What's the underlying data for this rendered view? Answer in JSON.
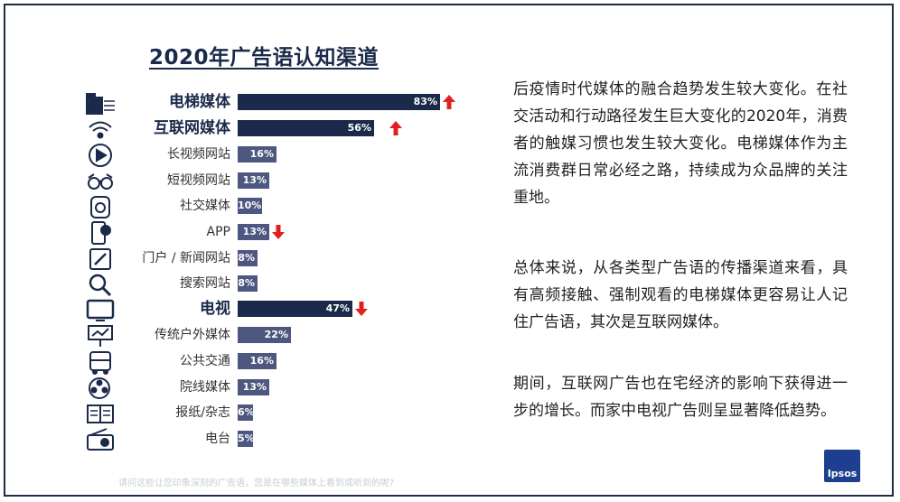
{
  "title": "2020年广告语认知渠道",
  "chart_data": {
    "type": "bar",
    "orientation": "horizontal",
    "title": "2020年广告语认知渠道",
    "xlim": [
      0,
      100
    ],
    "categories": [
      "电梯媒体",
      "互联网媒体",
      "长视频网站",
      "短视频网站",
      "社交媒体",
      "APP",
      "门户 / 新闻网站",
      "搜索网站",
      "电视",
      "传统户外媒体",
      "公共交通",
      "院线媒体",
      "报纸/杂志",
      "电台"
    ],
    "values": [
      83,
      56,
      16,
      13,
      10,
      13,
      8,
      8,
      47,
      22,
      16,
      13,
      6,
      5
    ],
    "value_labels": [
      "83%",
      "56%",
      "16%",
      "13%",
      "10%",
      "13%",
      "8%",
      "8%",
      "47%",
      "22%",
      "16%",
      "13%",
      "6%",
      "5%"
    ],
    "emphasis": [
      true,
      true,
      false,
      false,
      false,
      false,
      false,
      false,
      true,
      false,
      false,
      false,
      false,
      false
    ],
    "trend": [
      "up",
      "up",
      "",
      "",
      "",
      "down",
      "",
      "",
      "down",
      "",
      "",
      "",
      "",
      ""
    ],
    "icons": [
      "building-icon",
      "wifi-icon",
      "play-icon",
      "glasses-icon",
      "social-icon",
      "phone-icon",
      "pen-icon",
      "search-icon",
      "tv-icon",
      "billboard-icon",
      "bus-icon",
      "film-reel-icon",
      "newspaper-icon",
      "radio-icon"
    ]
  },
  "colors": {
    "bar": "#1b2a4a",
    "bar_light": "#4d5780",
    "arrow": "#e02020"
  },
  "paragraphs": [
    "后疫情时代媒体的融合趋势发生较大变化。在社交活动和行动路径发生巨大变化的2020年，消费者的触媒习惯也发生较大变化。电梯媒体作为主流消费群日常必经之路，持续成为众品牌的关注重地。",
    "总体来说，从各类型广告语的传播渠道来看，具有高频接触、强制观看的电梯媒体更容易让人记住广告语，其次是互联网媒体。",
    "期间，互联网广告也在宅经济的影响下获得进一步的增长。而家中电视广告则呈显著降低趋势。"
  ],
  "footnote": "请问这些让您印象深刻的广告语，您是在哪些媒体上看到或听到的呢?",
  "logo": "Ipsos"
}
